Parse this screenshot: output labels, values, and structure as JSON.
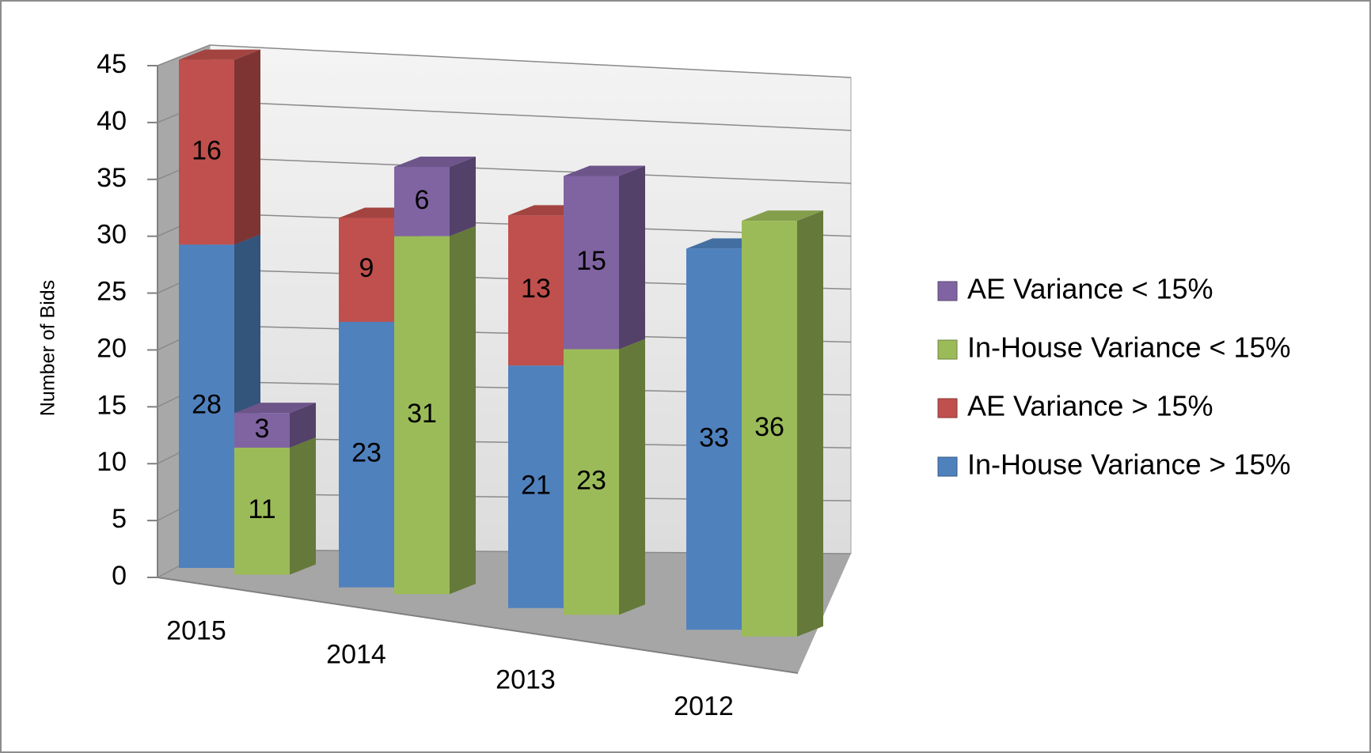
{
  "chart_data": {
    "type": "bar3d_stacked",
    "y_label": "Number of Bids",
    "categories": [
      "2015",
      "2014",
      "2013",
      "2012"
    ],
    "series": [
      {
        "name": "In-House Variance > 15%",
        "color": "#4f81bd",
        "values": [
          28,
          23,
          21,
          33
        ]
      },
      {
        "name": "AE Variance > 15%",
        "color": "#c0504d",
        "values": [
          16,
          9,
          13,
          null
        ]
      },
      {
        "name": "In-House Variance < 15%",
        "color": "#9bbb59",
        "values": [
          11,
          31,
          23,
          36
        ]
      },
      {
        "name": "AE Variance < 15%",
        "color": "#8064a2",
        "values": [
          3,
          6,
          15,
          null
        ]
      }
    ],
    "ylim": [
      0,
      45
    ],
    "yticks": [
      0,
      5,
      10,
      15,
      20,
      25,
      30,
      35,
      40,
      45
    ],
    "grid": true,
    "legend": "right"
  }
}
